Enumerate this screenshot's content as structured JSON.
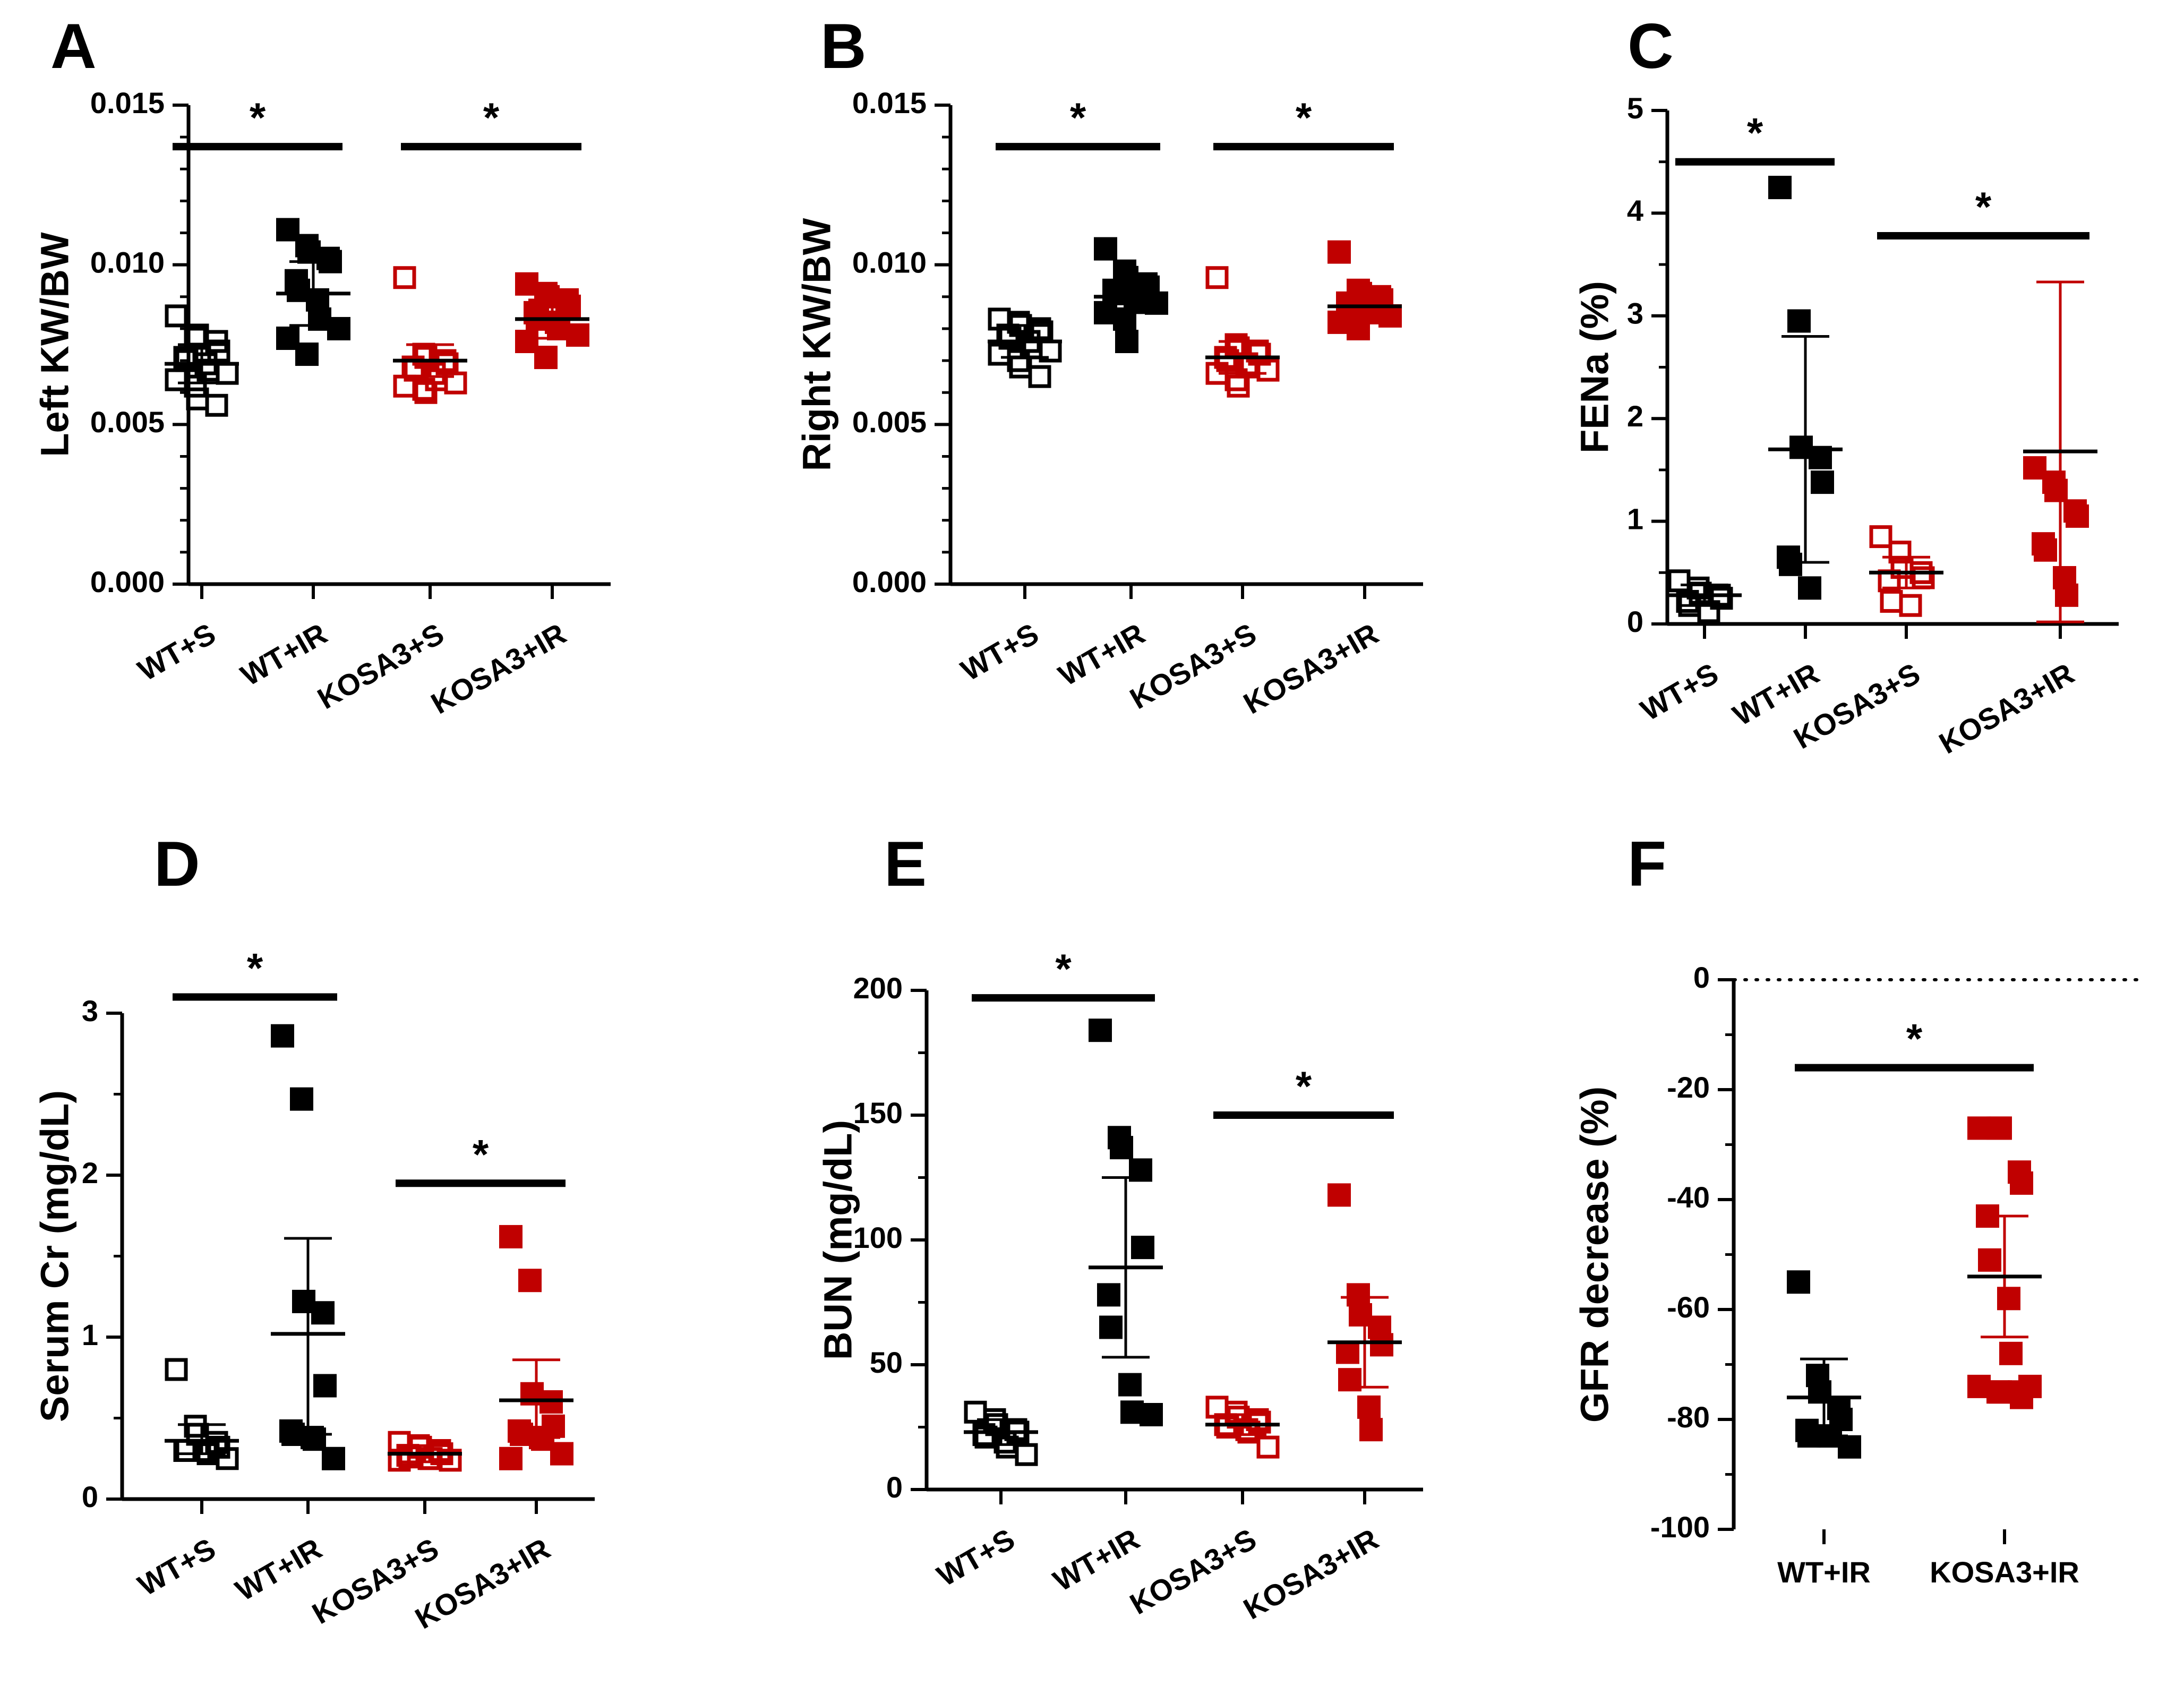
{
  "colors": {
    "black": "#000000",
    "red": "#c00000"
  },
  "chart_data": [
    {
      "id": "A",
      "panel_label": "A",
      "type": "scatter",
      "ylabel": "Left KW/BW",
      "ylim": [
        0,
        0.015
      ],
      "ytick_values": [
        0,
        0.005,
        0.01,
        0.015
      ],
      "ytick_labels": [
        "0.000",
        "0.005",
        "0.010",
        "0.015"
      ],
      "minor_ticks": 4,
      "categories": [
        "WT+S",
        "WT+IR",
        "KOSA3+S",
        "KOSA3+IR"
      ],
      "xlabel_rotation": -30,
      "groups": [
        {
          "category": "WT+S",
          "color": "black",
          "filled": false,
          "mean": 0.0069,
          "sd_low": 0.0063,
          "sd_high": 0.0075,
          "points": [
            0.0084,
            0.0077,
            0.0078,
            0.0076,
            0.0073,
            0.0071,
            0.007,
            0.0069,
            0.0067,
            0.0066,
            0.0064,
            0.0062,
            0.0058,
            0.0056
          ]
        },
        {
          "category": "WT+IR",
          "color": "black",
          "filled": true,
          "mean": 0.0091,
          "sd_low": 0.0081,
          "sd_high": 0.0101,
          "points": [
            0.0111,
            0.0106,
            0.0104,
            0.0102,
            0.0101,
            0.0095,
            0.0092,
            0.0089,
            0.0083,
            0.008,
            0.0077,
            0.0072
          ]
        },
        {
          "category": "KOSA3+S",
          "color": "red",
          "filled": false,
          "mean": 0.007,
          "sd_low": 0.0065,
          "sd_high": 0.0075,
          "points": [
            0.0096,
            0.0072,
            0.0071,
            0.007,
            0.0069,
            0.0068,
            0.0067,
            0.0066,
            0.0064,
            0.0063,
            0.0062,
            0.0061,
            0.006
          ]
        },
        {
          "category": "KOSA3+IR",
          "color": "red",
          "filled": true,
          "mean": 0.0083,
          "sd_low": 0.0077,
          "sd_high": 0.0089,
          "points": [
            0.0094,
            0.0091,
            0.009,
            0.0089,
            0.0087,
            0.0085,
            0.0083,
            0.0082,
            0.008,
            0.0078,
            0.0076,
            0.0071
          ]
        }
      ],
      "sig_bars": [
        {
          "from": 0,
          "to": 1,
          "y": 0.0137,
          "label": "*"
        },
        {
          "from": 2,
          "to": 3,
          "y": 0.0137,
          "label": "*"
        }
      ]
    },
    {
      "id": "B",
      "panel_label": "B",
      "type": "scatter",
      "ylabel": "Right KW/BW",
      "ylim": [
        0,
        0.015
      ],
      "ytick_values": [
        0,
        0.005,
        0.01,
        0.015
      ],
      "ytick_labels": [
        "0.000",
        "0.005",
        "0.010",
        "0.015"
      ],
      "minor_ticks": 4,
      "categories": [
        "WT+S",
        "WT+IR",
        "KOSA3+S",
        "KOSA3+IR"
      ],
      "xlabel_rotation": -30,
      "groups": [
        {
          "category": "WT+S",
          "color": "black",
          "filled": false,
          "mean": 0.0076,
          "sd_low": 0.0071,
          "sd_high": 0.0081,
          "points": [
            0.0083,
            0.0082,
            0.0081,
            0.008,
            0.0079,
            0.0078,
            0.0077,
            0.0076,
            0.0074,
            0.0073,
            0.0072,
            0.007,
            0.0068,
            0.0065
          ]
        },
        {
          "category": "WT+IR",
          "color": "black",
          "filled": true,
          "mean": 0.009,
          "sd_low": 0.0085,
          "sd_high": 0.0095,
          "points": [
            0.0105,
            0.0098,
            0.0096,
            0.0094,
            0.0093,
            0.0092,
            0.0091,
            0.009,
            0.0089,
            0.0088,
            0.0085,
            0.0083,
            0.0076
          ]
        },
        {
          "category": "KOSA3+S",
          "color": "red",
          "filled": false,
          "mean": 0.0071,
          "sd_low": 0.0066,
          "sd_high": 0.0076,
          "points": [
            0.0096,
            0.0075,
            0.0074,
            0.0073,
            0.0072,
            0.0071,
            0.007,
            0.0069,
            0.0068,
            0.0067,
            0.0066,
            0.0064,
            0.0062
          ]
        },
        {
          "category": "KOSA3+IR",
          "color": "red",
          "filled": true,
          "mean": 0.0087,
          "sd_low": 0.0083,
          "sd_high": 0.0091,
          "points": [
            0.0104,
            0.0092,
            0.0091,
            0.009,
            0.0089,
            0.0088,
            0.0087,
            0.0086,
            0.0085,
            0.0084,
            0.0082,
            0.008
          ]
        }
      ],
      "sig_bars": [
        {
          "from": 0,
          "to": 1,
          "y": 0.0137,
          "label": "*"
        },
        {
          "from": 2,
          "to": 3,
          "y": 0.0137,
          "label": "*"
        }
      ]
    },
    {
      "id": "C",
      "panel_label": "C",
      "type": "scatter",
      "ylabel": "FENa  (%)",
      "ylim": [
        0,
        5
      ],
      "ytick_values": [
        0,
        1,
        2,
        3,
        4,
        5
      ],
      "ytick_labels": [
        "0",
        "1",
        "2",
        "3",
        "4",
        "5"
      ],
      "minor_ticks": 1,
      "categories": [
        "WT+S",
        "WT+IR",
        "KOSA3+S",
        "KOSA3+IR"
      ],
      "xlabel_rotation": -30,
      "groups": [
        {
          "category": "WT+S",
          "color": "black",
          "filled": false,
          "mean": 0.28,
          "sd_low": 0.18,
          "sd_high": 0.38,
          "points": [
            0.42,
            0.35,
            0.3,
            0.28,
            0.25,
            0.22,
            0.18,
            0.12
          ]
        },
        {
          "category": "WT+IR",
          "color": "black",
          "filled": true,
          "mean": 1.7,
          "sd_low": 0.6,
          "sd_high": 2.8,
          "points": [
            4.25,
            2.95,
            1.72,
            1.62,
            1.38,
            0.65,
            0.58,
            0.35
          ]
        },
        {
          "category": "KOSA3+S",
          "color": "red",
          "filled": false,
          "mean": 0.5,
          "sd_low": 0.35,
          "sd_high": 0.65,
          "points": [
            0.85,
            0.7,
            0.55,
            0.5,
            0.45,
            0.42,
            0.22,
            0.18
          ]
        },
        {
          "category": "KOSA3+IR",
          "color": "red",
          "filled": true,
          "mean": 1.68,
          "sd_low": 0.02,
          "sd_high": 3.33,
          "points": [
            1.52,
            1.38,
            1.3,
            1.1,
            1.05,
            0.78,
            0.72,
            0.45,
            0.28
          ]
        }
      ],
      "sig_bars": [
        {
          "from": 0,
          "to": 1,
          "y": 4.5,
          "label": "*"
        },
        {
          "from": 2,
          "to": 3,
          "y": 3.78,
          "label": "*"
        }
      ]
    },
    {
      "id": "D",
      "panel_label": "D",
      "type": "scatter",
      "ylabel": "Serum Cr (mg/dL)",
      "ylim": [
        0,
        3
      ],
      "ytick_values": [
        0,
        1,
        2,
        3
      ],
      "ytick_labels": [
        "0",
        "1",
        "2",
        "3"
      ],
      "minor_ticks": 1,
      "categories": [
        "WT+S",
        "WT+IR",
        "KOSA3+S",
        "KOSA3+IR"
      ],
      "xlabel_rotation": -30,
      "groups": [
        {
          "category": "WT+S",
          "color": "black",
          "filled": false,
          "mean": 0.36,
          "sd_low": 0.28,
          "sd_high": 0.46,
          "points": [
            0.8,
            0.45,
            0.4,
            0.35,
            0.32,
            0.3,
            0.3,
            0.3,
            0.28,
            0.25
          ]
        },
        {
          "category": "WT+IR",
          "color": "black",
          "filled": true,
          "mean": 1.02,
          "sd_low": 0.4,
          "sd_high": 1.61,
          "points": [
            2.86,
            2.47,
            1.22,
            1.15,
            0.7,
            0.42,
            0.4,
            0.38,
            0.37,
            0.25
          ]
        },
        {
          "category": "KOSA3+S",
          "color": "red",
          "filled": false,
          "mean": 0.28,
          "sd_low": 0.23,
          "sd_high": 0.33,
          "points": [
            0.35,
            0.33,
            0.32,
            0.3,
            0.28,
            0.27,
            0.26,
            0.25,
            0.25,
            0.24,
            0.24
          ]
        },
        {
          "category": "KOSA3+IR",
          "color": "red",
          "filled": true,
          "mean": 0.61,
          "sd_low": 0.38,
          "sd_high": 0.86,
          "points": [
            1.62,
            1.35,
            0.65,
            0.6,
            0.45,
            0.42,
            0.4,
            0.38,
            0.37,
            0.28,
            0.25
          ]
        }
      ],
      "sig_bars": [
        {
          "from": 0,
          "to": 1,
          "y": 3.1,
          "label": "*"
        },
        {
          "from": 2,
          "to": 3,
          "y": 1.95,
          "label": "*"
        }
      ]
    },
    {
      "id": "E",
      "panel_label": "E",
      "type": "scatter",
      "ylabel": "BUN (mg/dL)",
      "ylim": [
        0,
        200
      ],
      "ytick_values": [
        0,
        50,
        100,
        150,
        200
      ],
      "ytick_labels": [
        "0",
        "50",
        "100",
        "150",
        "200"
      ],
      "minor_ticks": 1,
      "categories": [
        "WT+S",
        "WT+IR",
        "KOSA3+S",
        "KOSA3+IR"
      ],
      "xlabel_rotation": -30,
      "groups": [
        {
          "category": "WT+S",
          "color": "black",
          "filled": false,
          "mean": 23,
          "sd_low": 18,
          "sd_high": 28,
          "points": [
            31,
            28,
            26,
            24,
            23,
            22,
            21,
            19,
            17,
            14
          ]
        },
        {
          "category": "WT+IR",
          "color": "black",
          "filled": true,
          "mean": 89,
          "sd_low": 53,
          "sd_high": 125,
          "points": [
            184,
            141,
            137,
            128,
            97,
            78,
            65,
            42,
            31,
            30
          ]
        },
        {
          "category": "KOSA3+S",
          "color": "red",
          "filled": false,
          "mean": 26,
          "sd_low": 22,
          "sd_high": 30,
          "points": [
            33,
            31,
            29,
            28,
            27,
            26,
            25,
            24,
            23,
            17
          ]
        },
        {
          "category": "KOSA3+IR",
          "color": "red",
          "filled": true,
          "mean": 59,
          "sd_low": 41,
          "sd_high": 77,
          "points": [
            118,
            78,
            70,
            65,
            58,
            55,
            44,
            33,
            24
          ]
        }
      ],
      "sig_bars": [
        {
          "from": 0,
          "to": 1,
          "y": 197,
          "label": "*"
        },
        {
          "from": 2,
          "to": 3,
          "y": 150,
          "label": "*"
        }
      ]
    },
    {
      "id": "F",
      "panel_label": "F",
      "type": "scatter",
      "ylabel": "GFR decrease  (%)",
      "ylim": [
        -100,
        0
      ],
      "ytick_values": [
        -100,
        -80,
        -60,
        -40,
        -20,
        0
      ],
      "ytick_labels": [
        "-100",
        "-80",
        "-60",
        "-40",
        "-20",
        "0"
      ],
      "minor_ticks": 1,
      "categories": [
        "WT+IR",
        "KOSA3+IR"
      ],
      "xlabel_rotation": 0,
      "zero_line": true,
      "groups": [
        {
          "category": "WT+IR",
          "color": "black",
          "filled": true,
          "mean": -76,
          "sd_low": -83,
          "sd_high": -69,
          "points": [
            -55,
            -72,
            -75,
            -78,
            -80,
            -82,
            -83,
            -83,
            -83,
            -85
          ]
        },
        {
          "category": "KOSA3+IR",
          "color": "red",
          "filled": true,
          "mean": -54,
          "sd_low": -65,
          "sd_high": -43,
          "points": [
            -27,
            -27,
            -27,
            -35,
            -37,
            -43,
            -51,
            -58,
            -68,
            -74,
            -74,
            -75,
            -75,
            -75,
            -76
          ]
        }
      ],
      "sig_bars": [
        {
          "from": 0,
          "to": 1,
          "y": -16,
          "label": "*"
        }
      ]
    }
  ]
}
